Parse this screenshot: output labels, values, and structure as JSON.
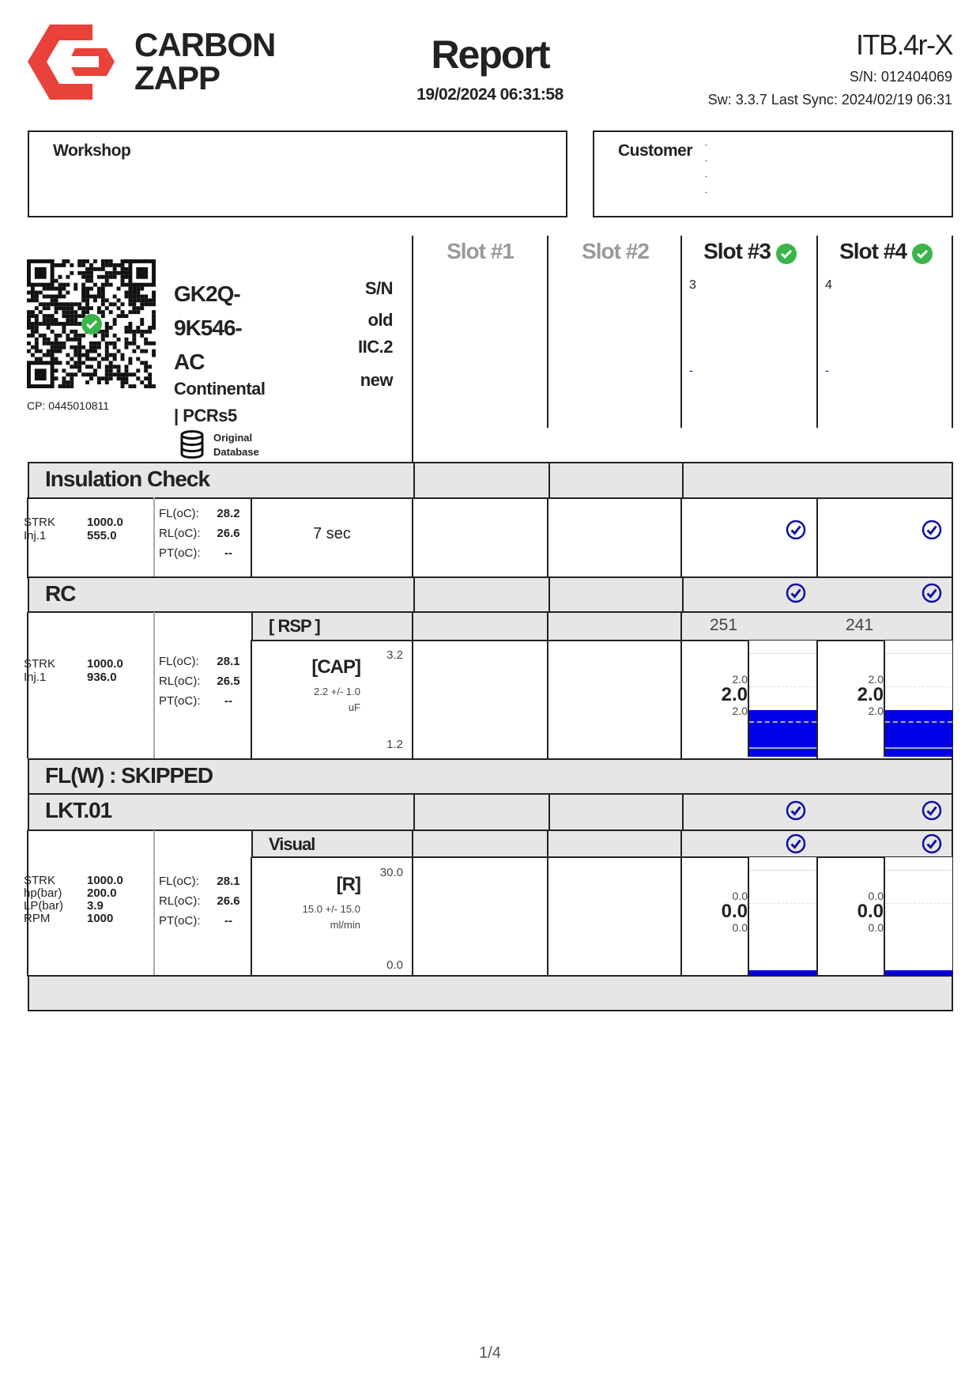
{
  "header": {
    "brand_line1": "CARBON",
    "brand_line2": "ZAPP",
    "title": "Report",
    "datetime": "19/02/2024 06:31:58",
    "device": "ITB.4r-X",
    "serial": "S/N: 012404069",
    "sw_sync": "Sw: 3.3.7 Last Sync: 2024/02/19 06:31"
  },
  "workshop": {
    "label": "Workshop"
  },
  "customer": {
    "label": "Customer",
    "lines": [
      "-",
      "-",
      "-",
      "-"
    ]
  },
  "injector": {
    "cp": "CP: 0445010811",
    "code_lines": [
      "GK2Q-",
      "9K546-",
      "AC"
    ],
    "maker_lines": [
      "Continental",
      "| PCRs5"
    ],
    "sn_label": "S/N",
    "sn_old": "old",
    "sn_code": "IIC.2",
    "sn_new": "new",
    "database": [
      "Original",
      "Database"
    ]
  },
  "slots": [
    {
      "label": "Slot #1",
      "active": false,
      "sn": "",
      "dash": ""
    },
    {
      "label": "Slot #2",
      "active": false,
      "sn": "",
      "dash": ""
    },
    {
      "label": "Slot #3",
      "active": true,
      "sn": "3",
      "dash": "-"
    },
    {
      "label": "Slot #4",
      "active": true,
      "sn": "4",
      "dash": "-"
    }
  ],
  "insulation": {
    "title": "Insulation Check",
    "params": [
      [
        "STRK",
        "1000.0"
      ],
      [
        "Inj.1",
        "555.0"
      ]
    ],
    "temps": [
      [
        "FL(oC):",
        "28.2"
      ],
      [
        "RL(oC):",
        "26.6"
      ],
      [
        "PT(oC):",
        "--"
      ]
    ],
    "duration": "7 sec",
    "slot_pass": [
      false,
      false,
      true,
      true
    ]
  },
  "rc": {
    "title": "RC",
    "slot_pass": [
      false,
      false,
      true,
      true
    ],
    "sub_title": "[ RSP ]",
    "rsp": [
      "",
      "",
      "251",
      "241"
    ],
    "params": [
      [
        "STRK",
        "1000.0"
      ],
      [
        "Inj.1",
        "936.0"
      ]
    ],
    "temps": [
      [
        "FL(oC):",
        "28.1"
      ],
      [
        "RL(oC):",
        "26.5"
      ],
      [
        "PT(oC):",
        "--"
      ]
    ],
    "measure": {
      "label": "[CAP]",
      "spec": "2.2 +/- 1.0",
      "unit": "uF",
      "max": "3.2",
      "min": "1.2"
    },
    "results": [
      null,
      null,
      {
        "upper": "2.0",
        "value": "2.0",
        "lower": "2.0",
        "fill": 2.0
      },
      {
        "upper": "2.0",
        "value": "2.0",
        "lower": "2.0",
        "fill": 2.0
      }
    ],
    "scale": [
      1.2,
      3.2
    ]
  },
  "flw": {
    "title": "FL(W) : SKIPPED"
  },
  "lkt": {
    "title": "LKT.01",
    "slot_pass": [
      false,
      false,
      true,
      true
    ],
    "sub_title": "Visual",
    "visual_pass": [
      false,
      false,
      true,
      true
    ],
    "params": [
      [
        "STRK",
        "1000.0"
      ],
      [
        "hp(bar)",
        "200.0"
      ],
      [
        "LP(bar)",
        "3.9"
      ],
      [
        "RPM",
        "1000"
      ]
    ],
    "temps": [
      [
        "FL(oC):",
        "28.1"
      ],
      [
        "RL(oC):",
        "26.6"
      ],
      [
        "PT(oC):",
        "--"
      ]
    ],
    "measure": {
      "label": "[R]",
      "spec": "15.0 +/- 15.0",
      "unit": "ml/min",
      "max": "30.0",
      "min": "0.0"
    },
    "results": [
      null,
      null,
      {
        "upper": "0.0",
        "value": "0.0",
        "lower": "0.0",
        "fill": 0.0
      },
      {
        "upper": "0.0",
        "value": "0.0",
        "lower": "0.0",
        "fill": 0.0
      }
    ],
    "scale": [
      0,
      30
    ]
  },
  "footer": {
    "page": "1/4"
  },
  "colors": {
    "brand_red": "#e8423a",
    "pass_blue": "#1010a0",
    "ok_green": "#3bb54a",
    "bar_blue": "#0000e6"
  }
}
